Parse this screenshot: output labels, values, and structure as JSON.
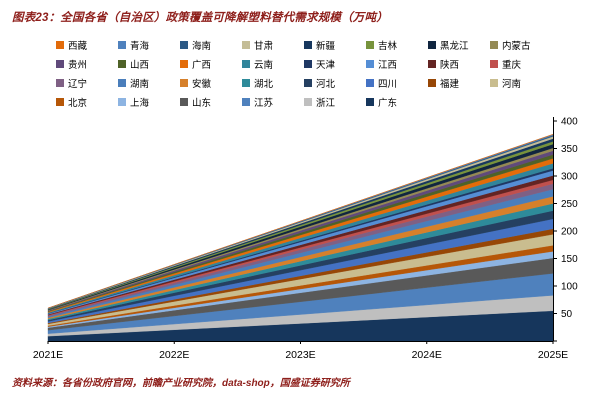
{
  "header": {
    "title": "图表23：全国各省（自治区）政策覆盖可降解塑料替代需求规模（万吨）"
  },
  "footer": {
    "source": "资料来源：各省份政府官网，前瞻产业研究院，data-shop，国盛证券研究所"
  },
  "chart_data": {
    "type": "area",
    "stacked": true,
    "title": "全国各省（自治区）政策覆盖可降解塑料替代需求规模（万吨）",
    "xlabel": "",
    "ylabel": "",
    "x": [
      "2021E",
      "2022E",
      "2023E",
      "2024E",
      "2025E"
    ],
    "ylim": [
      0,
      400
    ],
    "yticks": [
      0,
      50,
      100,
      150,
      200,
      250,
      300,
      350,
      400
    ],
    "legend_position": "top",
    "grid": false,
    "note": "series listed in legend order; stacking is bottom-up starting from the last series (广东 at bottom, 西藏 on top)",
    "series": [
      {
        "name": "西藏",
        "color": "#E26B0A",
        "values": [
          0.1,
          0.2,
          0.3,
          0.4,
          0.5
        ]
      },
      {
        "name": "青海",
        "color": "#4F81BD",
        "values": [
          0.2,
          0.5,
          0.8,
          1.2,
          1.5
        ]
      },
      {
        "name": "海南",
        "color": "#2C5985",
        "values": [
          0.3,
          0.7,
          1.2,
          1.6,
          2
        ]
      },
      {
        "name": "甘肃",
        "color": "#C4BD97",
        "values": [
          0.6,
          1.5,
          2.3,
          3.2,
          4
        ]
      },
      {
        "name": "新疆",
        "color": "#17375E",
        "values": [
          0.8,
          1.9,
          2.9,
          4,
          5
        ]
      },
      {
        "name": "吉林",
        "color": "#77933C",
        "values": [
          0.8,
          1.9,
          2.9,
          4,
          5
        ]
      },
      {
        "name": "黑龙江",
        "color": "#10253F",
        "values": [
          1.1,
          2.6,
          4.1,
          5.5,
          7
        ]
      },
      {
        "name": "内蒙古",
        "color": "#948A54",
        "values": [
          0.8,
          1.9,
          2.9,
          4,
          5
        ]
      },
      {
        "name": "贵州",
        "color": "#604A7B",
        "values": [
          1.1,
          2.6,
          4.1,
          5.5,
          7
        ]
      },
      {
        "name": "山西",
        "color": "#4F6228",
        "values": [
          1.1,
          2.6,
          4.1,
          5.5,
          7
        ]
      },
      {
        "name": "广西",
        "color": "#E36C09",
        "values": [
          1.4,
          3.3,
          5.2,
          7.1,
          9
        ]
      },
      {
        "name": "云南",
        "color": "#31859B",
        "values": [
          1.4,
          3.3,
          5.2,
          7.1,
          9
        ]
      },
      {
        "name": "天津",
        "color": "#1F3864",
        "values": [
          0.6,
          1.5,
          2.3,
          3.2,
          4
        ]
      },
      {
        "name": "江西",
        "color": "#558ED5",
        "values": [
          1.4,
          3.3,
          5.2,
          7.1,
          9
        ]
      },
      {
        "name": "陕西",
        "color": "#632423",
        "values": [
          1.3,
          3,
          4.6,
          6.3,
          8
        ]
      },
      {
        "name": "重庆",
        "color": "#C0504D",
        "values": [
          1.1,
          2.6,
          4.1,
          5.5,
          7
        ]
      },
      {
        "name": "辽宁",
        "color": "#7F6084",
        "values": [
          1.6,
          3.7,
          5.8,
          7.9,
          10
        ]
      },
      {
        "name": "湖南",
        "color": "#4A7EBB",
        "values": [
          2.1,
          4.8,
          7.6,
          10.3,
          13
        ]
      },
      {
        "name": "安徽",
        "color": "#D6802B",
        "values": [
          2.1,
          4.8,
          7.6,
          10.3,
          13
        ]
      },
      {
        "name": "湖北",
        "color": "#2E8B9A",
        "values": [
          2.1,
          4.8,
          7.6,
          10.3,
          13
        ]
      },
      {
        "name": "河北",
        "color": "#254061",
        "values": [
          2.4,
          5.6,
          8.7,
          11.9,
          15
        ]
      },
      {
        "name": "四川",
        "color": "#4472C4",
        "values": [
          2.9,
          6.7,
          10.4,
          14.2,
          18
        ]
      },
      {
        "name": "福建",
        "color": "#974706",
        "values": [
          1.6,
          3.7,
          5.8,
          7.9,
          10
        ]
      },
      {
        "name": "河南",
        "color": "#C9BD8F",
        "values": [
          3.2,
          7.4,
          11.6,
          15.8,
          20
        ]
      },
      {
        "name": "北京",
        "color": "#B65708",
        "values": [
          1.8,
          4.1,
          6.4,
          8.7,
          11
        ]
      },
      {
        "name": "上海",
        "color": "#8DB4E2",
        "values": [
          1.9,
          4.4,
          6.9,
          9.5,
          12
        ]
      },
      {
        "name": "山东",
        "color": "#595959",
        "values": [
          4.5,
          10.4,
          16.3,
          22.1,
          28
        ]
      },
      {
        "name": "江苏",
        "color": "#4F81BD",
        "values": [
          6.4,
          14.8,
          23.2,
          31.6,
          40
        ]
      },
      {
        "name": "浙江",
        "color": "#BFBFBF",
        "values": [
          4.5,
          10.4,
          16.3,
          22.1,
          28
        ]
      },
      {
        "name": "广东",
        "color": "#16365C",
        "values": [
          8.8,
          20.4,
          31.9,
          43.5,
          55
        ]
      }
    ]
  }
}
